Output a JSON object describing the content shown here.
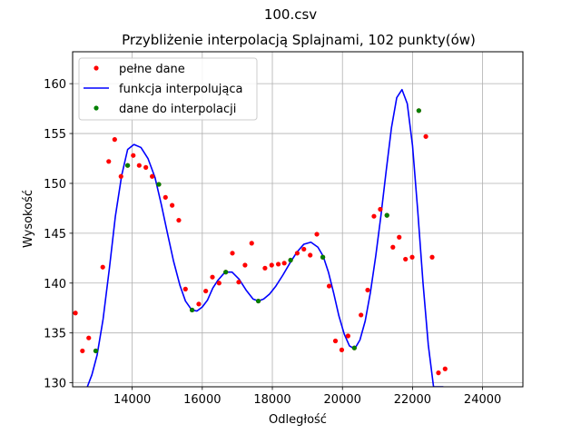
{
  "figure": {
    "suptitle": "100.csv",
    "title": "Przybliżenie interpolacją Splajnami, 102 punkty(ów)"
  },
  "chart_data": {
    "type": "line",
    "title": "Przybliżenie interpolacją Splajnami, 102 punkty(ów)",
    "xlabel": "Odległość",
    "ylabel": "Wysokość",
    "xlim": [
      12300,
      25150
    ],
    "ylim": [
      129.6,
      163.2
    ],
    "xticks": [
      14000,
      16000,
      18000,
      20000,
      22000,
      24000
    ],
    "xtick_labels": [
      "14000",
      "16000",
      "18000",
      "20000",
      "22000",
      "24000"
    ],
    "yticks": [
      130,
      135,
      140,
      145,
      150,
      155,
      160
    ],
    "ytick_labels": [
      "130",
      "135",
      "140",
      "145",
      "150",
      "155",
      "160"
    ],
    "grid": true,
    "legend_position": "top-left",
    "series": [
      {
        "name": "pełne dane",
        "kind": "markers",
        "color": "#ff0000",
        "x": [
          12380,
          12580,
          12760,
          12960,
          13160,
          13330,
          13500,
          13680,
          13870,
          14030,
          14200,
          14390,
          14570,
          14760,
          14950,
          15140,
          15330,
          15520,
          15710,
          15900,
          16100,
          16290,
          16480,
          16670,
          16860,
          17040,
          17220,
          17410,
          17600,
          17790,
          17980,
          18170,
          18340,
          18520,
          18710,
          18900,
          19080,
          19270,
          19440,
          19620,
          19800,
          19980,
          20160,
          20340,
          20530,
          20720,
          20900,
          21080,
          21270,
          21440,
          21620,
          21800,
          21990,
          22180,
          22380,
          22560,
          22740,
          22930
        ],
        "y": [
          137.0,
          133.2,
          134.5,
          133.2,
          141.6,
          152.2,
          154.4,
          150.7,
          151.8,
          152.8,
          151.8,
          151.6,
          150.7,
          149.9,
          148.6,
          147.8,
          146.3,
          139.4,
          137.3,
          137.9,
          139.2,
          140.6,
          140.0,
          141.1,
          143.0,
          140.1,
          141.8,
          144.0,
          138.2,
          141.5,
          141.8,
          141.9,
          142.0,
          142.3,
          143.0,
          143.4,
          142.8,
          144.9,
          142.6,
          139.7,
          134.2,
          133.3,
          134.7,
          133.5,
          136.8,
          139.3,
          146.7,
          147.4,
          146.8,
          143.6,
          144.6,
          142.4,
          142.6,
          157.3,
          154.7,
          142.6,
          131.0,
          131.4
        ]
      },
      {
        "name": "funkcja interpolująca",
        "kind": "line",
        "color": "#0000ff",
        "x": [
          12720,
          12850,
          13000,
          13170,
          13350,
          13520,
          13700,
          13870,
          14050,
          14250,
          14450,
          14650,
          14830,
          15000,
          15180,
          15360,
          15520,
          15700,
          15850,
          16000,
          16150,
          16300,
          16450,
          16650,
          16850,
          17050,
          17250,
          17450,
          17600,
          17750,
          17920,
          18100,
          18300,
          18500,
          18700,
          18900,
          19100,
          19300,
          19450,
          19600,
          19750,
          19900,
          20050,
          20200,
          20350,
          20500,
          20650,
          20800,
          20950,
          21100,
          21250,
          21400,
          21550,
          21700,
          21850,
          22000,
          22150,
          22300,
          22450,
          22600,
          22750,
          22880
        ],
        "y": [
          129.6,
          130.8,
          132.8,
          136.4,
          141.5,
          146.7,
          150.8,
          153.4,
          153.9,
          153.6,
          152.5,
          150.6,
          147.9,
          145.1,
          142.2,
          139.8,
          138.2,
          137.3,
          137.2,
          137.6,
          138.3,
          139.5,
          140.3,
          141.1,
          141.1,
          140.4,
          139.3,
          138.4,
          138.2,
          138.4,
          138.9,
          139.7,
          140.8,
          142.0,
          143.1,
          143.9,
          144.1,
          143.6,
          142.7,
          141.1,
          139.0,
          136.7,
          134.9,
          133.7,
          133.4,
          134.3,
          136.2,
          139.1,
          142.7,
          146.8,
          151.3,
          155.6,
          158.6,
          159.4,
          158.0,
          153.8,
          147.2,
          140.0,
          133.8,
          129.6,
          129.6,
          129.6
        ]
      },
      {
        "name": "dane do interpolacji",
        "kind": "markers",
        "color": "#008000",
        "x": [
          12960,
          13870,
          14760,
          15710,
          16670,
          17600,
          18520,
          19440,
          20340,
          21270,
          22180
        ],
        "y": [
          133.2,
          151.8,
          149.9,
          137.3,
          141.1,
          138.2,
          142.3,
          142.6,
          133.5,
          146.8,
          157.3
        ]
      }
    ]
  }
}
